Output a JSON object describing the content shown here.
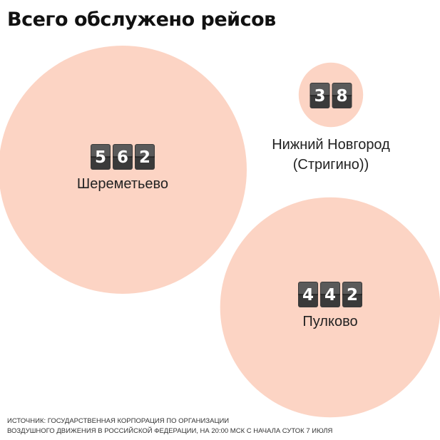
{
  "title": "Всего обслужено рейсов",
  "source": {
    "line1": "ИСТОЧНИК: ГОСУДАРСТВЕННАЯ КОРПОРАЦИЯ ПО ОРГАНИЗАЦИИ",
    "line2": "ВОЗДУШНОГО ДВИЖЕНИЯ В РОССИЙСКОЙ ФЕДЕРАЦИИ, НА 20:00 МСК С НАЧАЛА СУТОК 7 ИЮЛЯ"
  },
  "colors": {
    "bubble": "#fcd4c4",
    "digit_card": "#3a3a3a",
    "digit_text": "#ffffff"
  },
  "chart_data": {
    "type": "bubble",
    "title": "Всего обслужено рейсов",
    "series": [
      {
        "label_lines": [
          "Шереметьево"
        ],
        "value": 562
      },
      {
        "label_lines": [
          "Нижний Новгород",
          "(Стригино))"
        ],
        "value": 38
      },
      {
        "label_lines": [
          "Пулково"
        ],
        "value": 442
      }
    ]
  }
}
